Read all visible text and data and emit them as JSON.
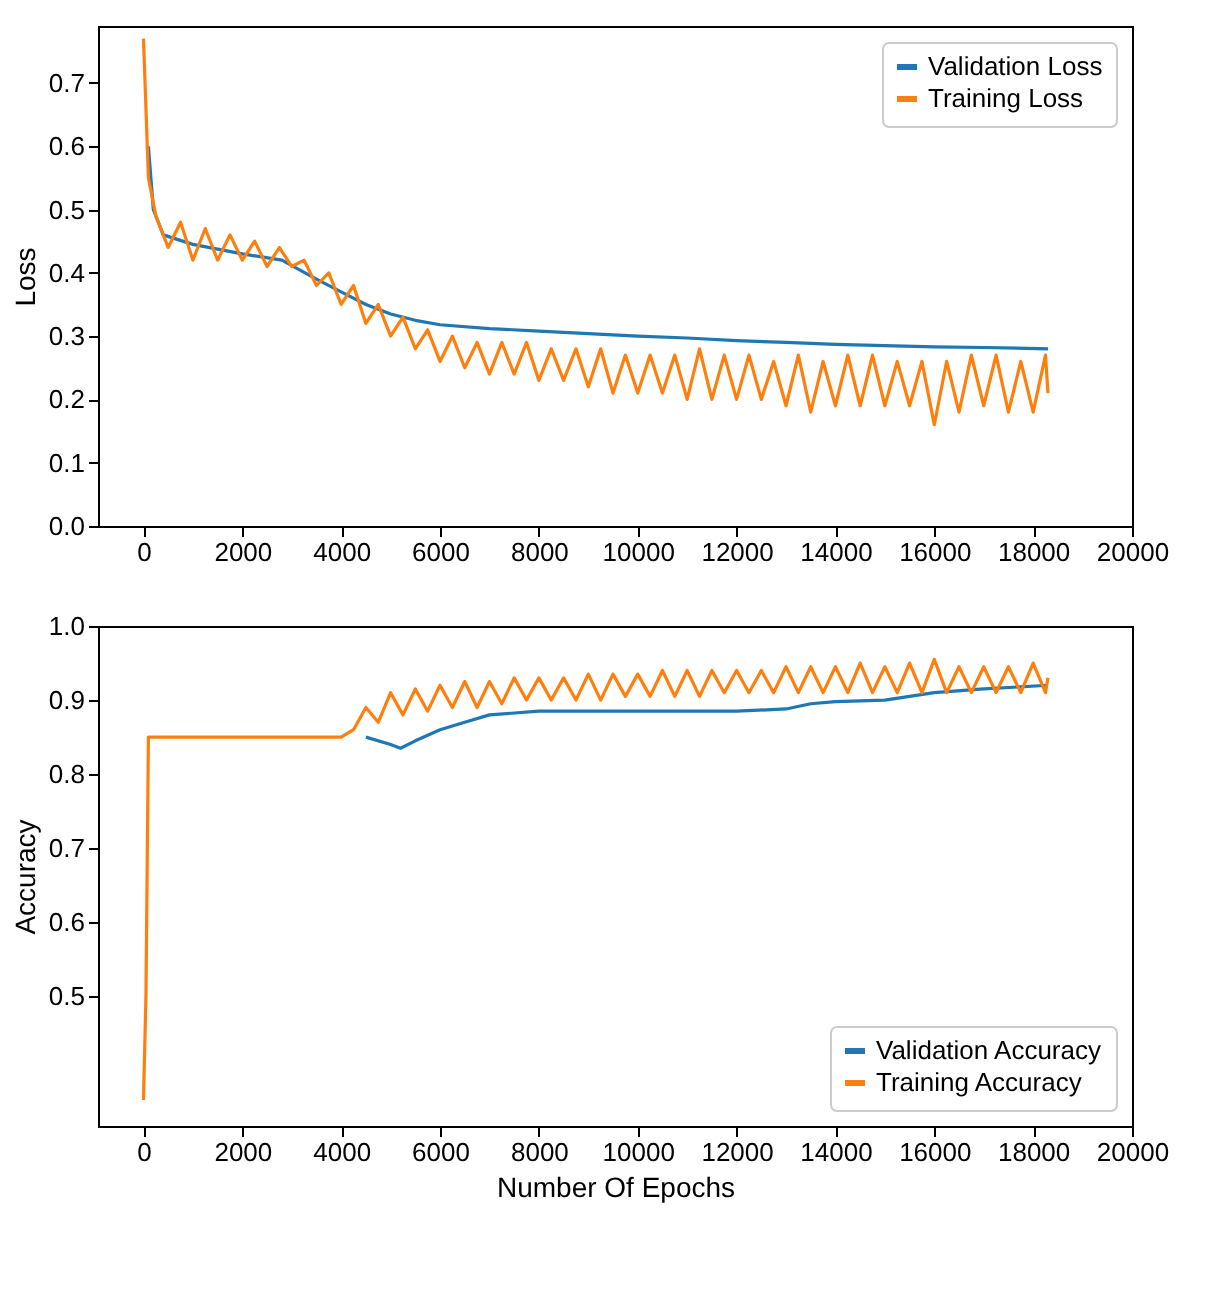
{
  "chart_data": [
    {
      "type": "line",
      "ylabel": "Loss",
      "xlim": [
        -920,
        20000
      ],
      "ylim": [
        0,
        0.79
      ],
      "xticks": [
        0,
        2000,
        4000,
        6000,
        8000,
        10000,
        12000,
        14000,
        16000,
        18000,
        20000
      ],
      "yticks": [
        {
          "value": 0,
          "label": "0.0"
        },
        0.1,
        0.2,
        0.3,
        0.4,
        0.5,
        0.6,
        0.7
      ],
      "grid": false,
      "legend": "top right",
      "line_style": "solid",
      "marker": "none",
      "series": [
        {
          "name": "Validation Loss",
          "color": "#1f77b4",
          "x": [
            100,
            200,
            400,
            1000,
            2000,
            2800,
            3500,
            4000,
            4500,
            5000,
            5500,
            6000,
            7000,
            8000,
            9000,
            10000,
            11000,
            12000,
            13000,
            14000,
            15000,
            16000,
            17000,
            18300
          ],
          "values": [
            0.6,
            0.5,
            0.46,
            0.445,
            0.43,
            0.42,
            0.39,
            0.37,
            0.35,
            0.335,
            0.325,
            0.318,
            0.312,
            0.308,
            0.304,
            0.3,
            0.297,
            0.293,
            0.29,
            0.287,
            0.285,
            0.283,
            0.282,
            0.28
          ]
        },
        {
          "name": "Training Loss",
          "color": "#ff7f0e",
          "x": [
            0,
            100,
            250,
            500,
            750,
            1000,
            1250,
            1500,
            1750,
            2000,
            2250,
            2500,
            2750,
            3000,
            3250,
            3500,
            3750,
            4000,
            4250,
            4500,
            4750,
            5000,
            5250,
            5500,
            5750,
            6000,
            6250,
            6500,
            6750,
            7000,
            7250,
            7500,
            7750,
            8000,
            8250,
            8500,
            8750,
            9000,
            9250,
            9500,
            9750,
            10000,
            10250,
            10500,
            10750,
            11000,
            11250,
            11500,
            11750,
            12000,
            12250,
            12500,
            12750,
            13000,
            13250,
            13500,
            13750,
            14000,
            14250,
            14500,
            14750,
            15000,
            15250,
            15500,
            15750,
            16000,
            16250,
            16500,
            16750,
            17000,
            17250,
            17500,
            17750,
            18000,
            18250,
            18300
          ],
          "values": [
            0.77,
            0.55,
            0.49,
            0.44,
            0.48,
            0.42,
            0.47,
            0.42,
            0.46,
            0.42,
            0.45,
            0.41,
            0.44,
            0.41,
            0.42,
            0.38,
            0.4,
            0.35,
            0.38,
            0.32,
            0.35,
            0.3,
            0.33,
            0.28,
            0.31,
            0.26,
            0.3,
            0.25,
            0.29,
            0.24,
            0.29,
            0.24,
            0.29,
            0.23,
            0.28,
            0.23,
            0.28,
            0.22,
            0.28,
            0.21,
            0.27,
            0.21,
            0.27,
            0.21,
            0.27,
            0.2,
            0.28,
            0.2,
            0.27,
            0.2,
            0.27,
            0.2,
            0.26,
            0.19,
            0.27,
            0.18,
            0.26,
            0.19,
            0.27,
            0.19,
            0.27,
            0.19,
            0.26,
            0.19,
            0.26,
            0.16,
            0.26,
            0.18,
            0.27,
            0.19,
            0.27,
            0.18,
            0.26,
            0.18,
            0.27,
            0.21
          ]
        }
      ]
    },
    {
      "type": "line",
      "xlabel": "Number Of Epochs",
      "ylabel": "Accuracy",
      "xlim": [
        -920,
        20000
      ],
      "ylim": [
        0.325,
        1.0
      ],
      "xticks": [
        0,
        2000,
        4000,
        6000,
        8000,
        10000,
        12000,
        14000,
        16000,
        18000,
        20000
      ],
      "yticks": [
        0.5,
        0.6,
        0.7,
        0.8,
        0.9,
        {
          "value": 1,
          "label": "1.0"
        }
      ],
      "grid": false,
      "legend": "bottom right",
      "line_style": "solid",
      "marker": "none",
      "series": [
        {
          "name": "Validation Accuracy",
          "color": "#1f77b4",
          "x": [
            4500,
            5000,
            5200,
            5500,
            6000,
            6500,
            7000,
            8000,
            10000,
            12000,
            13000,
            13500,
            14000,
            15000,
            15500,
            16000,
            17000,
            18300
          ],
          "values": [
            0.85,
            0.84,
            0.835,
            0.845,
            0.86,
            0.87,
            0.88,
            0.885,
            0.885,
            0.885,
            0.888,
            0.895,
            0.898,
            0.9,
            0.905,
            0.91,
            0.915,
            0.92
          ]
        },
        {
          "name": "Training Accuracy",
          "color": "#ff7f0e",
          "x": [
            0,
            50,
            100,
            4000,
            4250,
            4500,
            4750,
            5000,
            5250,
            5500,
            5750,
            6000,
            6250,
            6500,
            6750,
            7000,
            7250,
            7500,
            7750,
            8000,
            8250,
            8500,
            8750,
            9000,
            9250,
            9500,
            9750,
            10000,
            10250,
            10500,
            10750,
            11000,
            11250,
            11500,
            11750,
            12000,
            12250,
            12500,
            12750,
            13000,
            13250,
            13500,
            13750,
            14000,
            14250,
            14500,
            14750,
            15000,
            15250,
            15500,
            15750,
            16000,
            16250,
            16500,
            16750,
            17000,
            17250,
            17500,
            17750,
            18000,
            18250,
            18300
          ],
          "values": [
            0.36,
            0.5,
            0.85,
            0.85,
            0.86,
            0.89,
            0.87,
            0.91,
            0.88,
            0.915,
            0.885,
            0.92,
            0.89,
            0.925,
            0.89,
            0.925,
            0.895,
            0.93,
            0.9,
            0.93,
            0.9,
            0.93,
            0.9,
            0.935,
            0.9,
            0.935,
            0.905,
            0.935,
            0.905,
            0.94,
            0.905,
            0.94,
            0.905,
            0.94,
            0.91,
            0.94,
            0.91,
            0.94,
            0.91,
            0.945,
            0.91,
            0.945,
            0.91,
            0.945,
            0.91,
            0.95,
            0.91,
            0.945,
            0.91,
            0.95,
            0.91,
            0.955,
            0.91,
            0.945,
            0.91,
            0.945,
            0.91,
            0.945,
            0.91,
            0.95,
            0.91,
            0.93
          ]
        }
      ]
    }
  ]
}
